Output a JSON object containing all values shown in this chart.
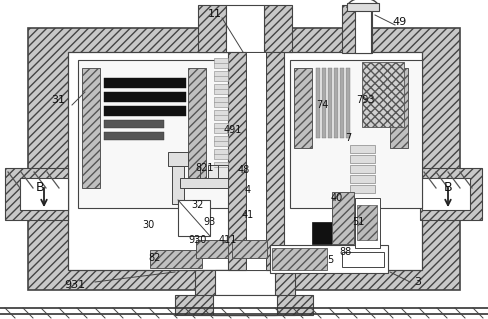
{
  "bg_color": "#ffffff",
  "lc": "#444444",
  "hc": "#555555",
  "fc_hatch": "#cccccc",
  "fc_white": "#ffffff",
  "fc_light": "#f0f0f0",
  "figsize": [
    4.89,
    3.19
  ],
  "dpi": 100,
  "labels": [
    [
      "11",
      215,
      14,
      8
    ],
    [
      "49",
      400,
      22,
      8
    ],
    [
      "31",
      58,
      100,
      8
    ],
    [
      "491",
      233,
      130,
      7
    ],
    [
      "74",
      322,
      105,
      7
    ],
    [
      "793",
      365,
      100,
      7
    ],
    [
      "7",
      348,
      138,
      7
    ],
    [
      "821",
      205,
      168,
      7
    ],
    [
      "48",
      244,
      170,
      7
    ],
    [
      "4",
      248,
      190,
      7
    ],
    [
      "32",
      198,
      205,
      7
    ],
    [
      "41",
      248,
      215,
      7
    ],
    [
      "93",
      210,
      222,
      7
    ],
    [
      "40",
      337,
      198,
      7
    ],
    [
      "51",
      358,
      222,
      7
    ],
    [
      "930",
      198,
      240,
      7
    ],
    [
      "411",
      228,
      240,
      7
    ],
    [
      "30",
      148,
      225,
      7
    ],
    [
      "82",
      155,
      258,
      7
    ],
    [
      "88",
      346,
      252,
      7
    ],
    [
      "5",
      330,
      260,
      7
    ],
    [
      "B",
      40,
      188,
      9
    ],
    [
      "B",
      448,
      188,
      9
    ],
    [
      "931",
      75,
      285,
      8
    ],
    [
      "3",
      418,
      282,
      8
    ]
  ]
}
